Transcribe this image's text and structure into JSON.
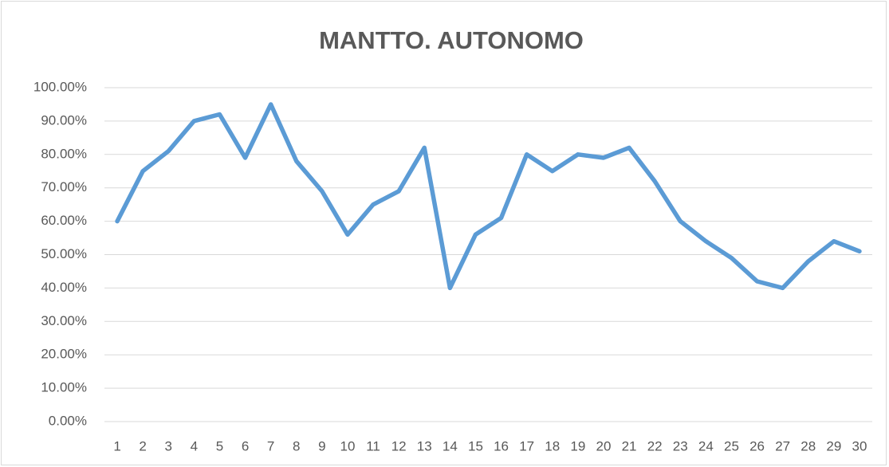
{
  "chart_data": {
    "type": "line",
    "title": "MANTTO. AUTONOMO",
    "categories": [
      "1",
      "2",
      "3",
      "4",
      "5",
      "6",
      "7",
      "8",
      "9",
      "10",
      "11",
      "12",
      "13",
      "14",
      "15",
      "16",
      "17",
      "18",
      "19",
      "20",
      "21",
      "22",
      "23",
      "24",
      "25",
      "26",
      "27",
      "28",
      "29",
      "30"
    ],
    "values": [
      60,
      75,
      81,
      90,
      92,
      79,
      95,
      78,
      69,
      56,
      65,
      69,
      82,
      40,
      56,
      61,
      80,
      75,
      80,
      79,
      82,
      72,
      60,
      54,
      49,
      42,
      40,
      48,
      54,
      51
    ],
    "color": "#5b9bd5",
    "ylim": [
      0,
      100
    ],
    "yticks": [
      {
        "value": 0,
        "label": "0.00%"
      },
      {
        "value": 10,
        "label": "10.00%"
      },
      {
        "value": 20,
        "label": "20.00%"
      },
      {
        "value": 30,
        "label": "30.00%"
      },
      {
        "value": 40,
        "label": "40.00%"
      },
      {
        "value": 50,
        "label": "50.00%"
      },
      {
        "value": 60,
        "label": "60.00%"
      },
      {
        "value": 70,
        "label": "70.00%"
      },
      {
        "value": 80,
        "label": "80.00%"
      },
      {
        "value": 90,
        "label": "90.00%"
      },
      {
        "value": 100,
        "label": "100.00%"
      }
    ],
    "grid": true
  }
}
